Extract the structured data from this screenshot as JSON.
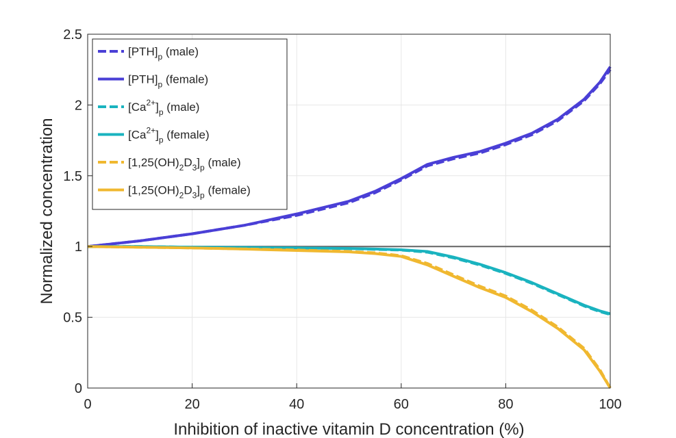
{
  "chart_data": {
    "type": "line",
    "xlabel": "Inhibition of inactive vitamin D concentration (%)",
    "ylabel": "Normalized concentration",
    "xlim": [
      0,
      100
    ],
    "ylim": [
      0,
      2.5
    ],
    "xticks": [
      "0",
      "20",
      "40",
      "60",
      "80",
      "100"
    ],
    "yticks": [
      "0",
      "0.5",
      "1",
      "1.5",
      "2",
      "2.5"
    ],
    "grid": true,
    "legend_position": "top-left",
    "reference_line": {
      "y": 1,
      "color": "#6b6b6b"
    },
    "x": [
      0,
      10,
      20,
      30,
      40,
      50,
      55,
      60,
      65,
      70,
      75,
      80,
      85,
      90,
      95,
      98,
      100
    ],
    "series": [
      {
        "key": "pth_male",
        "legend": {
          "base": "[PTH]",
          "sub": "p",
          "tail": " (male)"
        },
        "color": "#4a3fd6",
        "style": "dashed",
        "values": [
          1.0,
          1.04,
          1.09,
          1.15,
          1.22,
          1.31,
          1.38,
          1.47,
          1.57,
          1.62,
          1.66,
          1.72,
          1.79,
          1.89,
          2.03,
          2.15,
          2.25
        ]
      },
      {
        "key": "pth_female",
        "legend": {
          "base": "[PTH]",
          "sub": "p",
          "tail": " (female)"
        },
        "color": "#4a3fd6",
        "style": "solid",
        "values": [
          1.0,
          1.04,
          1.09,
          1.15,
          1.23,
          1.32,
          1.39,
          1.48,
          1.58,
          1.63,
          1.67,
          1.73,
          1.8,
          1.9,
          2.04,
          2.16,
          2.27
        ]
      },
      {
        "key": "ca_male",
        "legend": {
          "base": "[Ca",
          "sup": "2+",
          "mid": "]",
          "sub": "p",
          "tail": " (male)"
        },
        "color": "#1ab3bf",
        "style": "dashed",
        "values": [
          1.0,
          1.0,
          0.995,
          0.993,
          0.99,
          0.985,
          0.98,
          0.975,
          0.96,
          0.92,
          0.87,
          0.81,
          0.74,
          0.66,
          0.58,
          0.54,
          0.52
        ]
      },
      {
        "key": "ca_female",
        "legend": {
          "base": "[Ca",
          "sup": "2+",
          "mid": "]",
          "sub": "p",
          "tail": " (female)"
        },
        "color": "#1ab3bf",
        "style": "solid",
        "values": [
          1.0,
          1.0,
          0.995,
          0.993,
          0.99,
          0.986,
          0.982,
          0.977,
          0.965,
          0.925,
          0.875,
          0.815,
          0.745,
          0.665,
          0.585,
          0.545,
          0.525
        ]
      },
      {
        "key": "vitd_male",
        "legend": {
          "base": "[1,25(OH)",
          "sub2": "2",
          "mid2": "D",
          "sub3": "3",
          "mid": "]",
          "sub": "p",
          "tail": " (male)"
        },
        "color": "#f0b830",
        "style": "dashed",
        "values": [
          1.0,
          0.995,
          0.99,
          0.983,
          0.975,
          0.965,
          0.955,
          0.935,
          0.88,
          0.8,
          0.72,
          0.65,
          0.55,
          0.43,
          0.28,
          0.13,
          0.0
        ]
      },
      {
        "key": "vitd_female",
        "legend": {
          "base": "[1,25(OH)",
          "sub2": "2",
          "mid2": "D",
          "sub3": "3",
          "mid": "]",
          "sub": "p",
          "tail": " (female)"
        },
        "color": "#f0b830",
        "style": "solid",
        "values": [
          1.0,
          0.995,
          0.99,
          0.982,
          0.972,
          0.962,
          0.95,
          0.93,
          0.87,
          0.79,
          0.71,
          0.64,
          0.54,
          0.42,
          0.27,
          0.12,
          0.0
        ]
      }
    ]
  }
}
